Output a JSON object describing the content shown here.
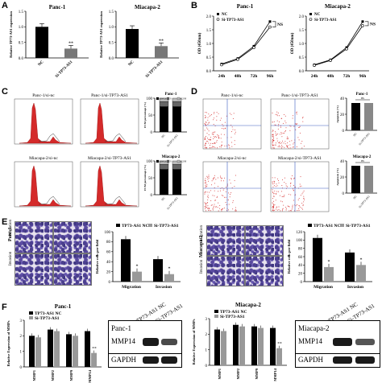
{
  "panels": {
    "A": {
      "letter": "A",
      "charts": [
        {
          "title": "Panc-1",
          "ylabel": "Relative TP73-AS1 expression",
          "ylim": [
            0,
            1.5
          ],
          "ticks": [
            "0.0",
            "0.5",
            "1.0",
            "1.5"
          ],
          "categories": [
            "NC",
            "Si-TP73-AS1"
          ],
          "values": [
            1.0,
            0.3
          ],
          "sig": "**"
        },
        {
          "title": "Miacapa-2",
          "ylabel": "Relative TP73-AS1 expression",
          "ylim": [
            0,
            1.5
          ],
          "ticks": [
            "0.0",
            "0.5",
            "1.0",
            "1.5"
          ],
          "categories": [
            "NC",
            "Si-TP73-AS1"
          ],
          "values": [
            0.93,
            0.38
          ],
          "sig": "**"
        }
      ]
    },
    "B": {
      "letter": "B",
      "charts": [
        {
          "title": "Panc-1",
          "ylabel": "OD (450nm)",
          "ticks": [
            "0.0",
            "0.5",
            "1.0",
            "1.5",
            "2.0"
          ],
          "categories": [
            "24h",
            "48h",
            "72h",
            "96h"
          ],
          "legend": [
            "NC",
            "Si-TP73-AS1"
          ],
          "ns": "NS",
          "series": [
            {
              "name": "NC",
              "values": [
                0.25,
                0.45,
                0.9,
                1.8
              ]
            },
            {
              "name": "Si-TP73-AS1",
              "values": [
                0.22,
                0.42,
                0.85,
                1.6
              ]
            }
          ]
        },
        {
          "title": "Miacapa-2",
          "ylabel": "OD (450nm)",
          "ticks": [
            "0.0",
            "0.5",
            "1.0",
            "1.5",
            "2.0"
          ],
          "categories": [
            "24h",
            "48h",
            "72h",
            "96h"
          ],
          "legend": [
            "NC",
            "Si-TP73-AS1"
          ],
          "ns": "NS",
          "series": [
            {
              "name": "NC",
              "values": [
                0.22,
                0.4,
                0.85,
                1.8
              ]
            },
            {
              "name": "Si-TP73-AS1",
              "values": [
                0.2,
                0.38,
                0.8,
                1.65
              ]
            }
          ]
        }
      ]
    },
    "C": {
      "letter": "C",
      "histo_titles": [
        "Panc-1/si-nc",
        "Panc-1/si-TP73-AS1",
        "Miacapa-2/si-nc",
        "Miacapa-2/si-TP73-AS1"
      ],
      "bar_titles": [
        "Panc-1",
        "Miacapa-2"
      ],
      "ylabel": "FCM percentage (%)",
      "legend": [
        "G0/G1",
        "S",
        "G2/M"
      ],
      "categories": [
        "NC",
        "Si-TP73-AS1"
      ]
    },
    "D": {
      "letter": "D",
      "flow_titles": [
        "Panc-1/si-nc",
        "Panc-1/si-TP73-AS1",
        "Miacapa-2/si-nc",
        "Miacapa-2/si-TP73-AS1"
      ],
      "bar_titles": [
        "Panc-1",
        "Miacapa-2"
      ],
      "ylabel": "Apoptosis (%)",
      "ns": "ns",
      "categories": [
        "NC",
        "Si-TP73-AS1"
      ]
    },
    "E": {
      "letter": "E",
      "left_cell": "Panc-1",
      "right_cell": "Miacapa-2",
      "row_labels": [
        "Migration",
        "Invasion"
      ],
      "legend": [
        "TP73-AS1 NC",
        "Si-TP73-AS1"
      ],
      "ylabel": "Relative cells per field",
      "charts": [
        {
          "categories": [
            "Migration",
            "Invasion"
          ],
          "ticks": [
            "0",
            "20",
            "40",
            "60",
            "80",
            "100"
          ],
          "series": [
            {
              "name": "TP73-AS1 NC",
              "values": [
                85,
                45
              ]
            },
            {
              "name": "Si-TP73-AS1",
              "values": [
                20,
                15
              ]
            }
          ],
          "sig": "*"
        },
        {
          "categories": [
            "Migration",
            "Invasion"
          ],
          "ticks": [
            "0",
            "20",
            "40",
            "60",
            "80",
            "100",
            "120"
          ],
          "series": [
            {
              "name": "TP73-AS1 NC",
              "values": [
                105,
                70
              ]
            },
            {
              "name": "Si-TP73-AS1",
              "values": [
                35,
                40
              ]
            }
          ],
          "sig": "*"
        }
      ]
    },
    "F": {
      "letter": "F",
      "charts": [
        {
          "title": "Panc-1",
          "ylabel": "Relative Expression of MMPs",
          "legend": [
            "TP73-AS1 NC",
            "Si-TP73-AS1"
          ],
          "categories": [
            "MMP1",
            "MMP2",
            "MMP9",
            "MMP14"
          ],
          "ticks": [
            "0",
            "1",
            "2",
            "3"
          ],
          "series": [
            {
              "name": "TP73-AS1 NC",
              "values": [
                2.0,
                2.4,
                2.1,
                2.3
              ]
            },
            {
              "name": "Si-TP73-AS1",
              "values": [
                1.9,
                2.3,
                2.0,
                0.9
              ]
            }
          ],
          "sig": "**"
        },
        {
          "title": "Miacapa-2",
          "ylabel": "Relative Expression of MMPs",
          "legend": [
            "TP73-AS1 NC",
            "Si-TP73-AS1"
          ],
          "categories": [
            "MMP1",
            "MMP2",
            "MMP9",
            "MMP14"
          ],
          "ticks": [
            "0",
            "1",
            "2",
            "3"
          ],
          "series": [
            {
              "name": "TP73-AS1 NC",
              "values": [
                2.3,
                2.6,
                2.5,
                2.4
              ]
            },
            {
              "name": "Si-TP73-AS1",
              "values": [
                2.2,
                2.5,
                2.4,
                1.1
              ]
            }
          ],
          "sig": "**"
        }
      ],
      "blots": [
        {
          "cell": "Panc-1",
          "lanes": [
            "TP73-AS1 NC",
            "Si-TP73-AS1"
          ],
          "rows": [
            "MMP14",
            "GAPDH"
          ]
        },
        {
          "cell": "Miacapa-2",
          "lanes": [
            "TP73-AS1 NC",
            "Si-TP73-AS1"
          ],
          "rows": [
            "MMP14",
            "GAPDH"
          ]
        }
      ]
    }
  }
}
